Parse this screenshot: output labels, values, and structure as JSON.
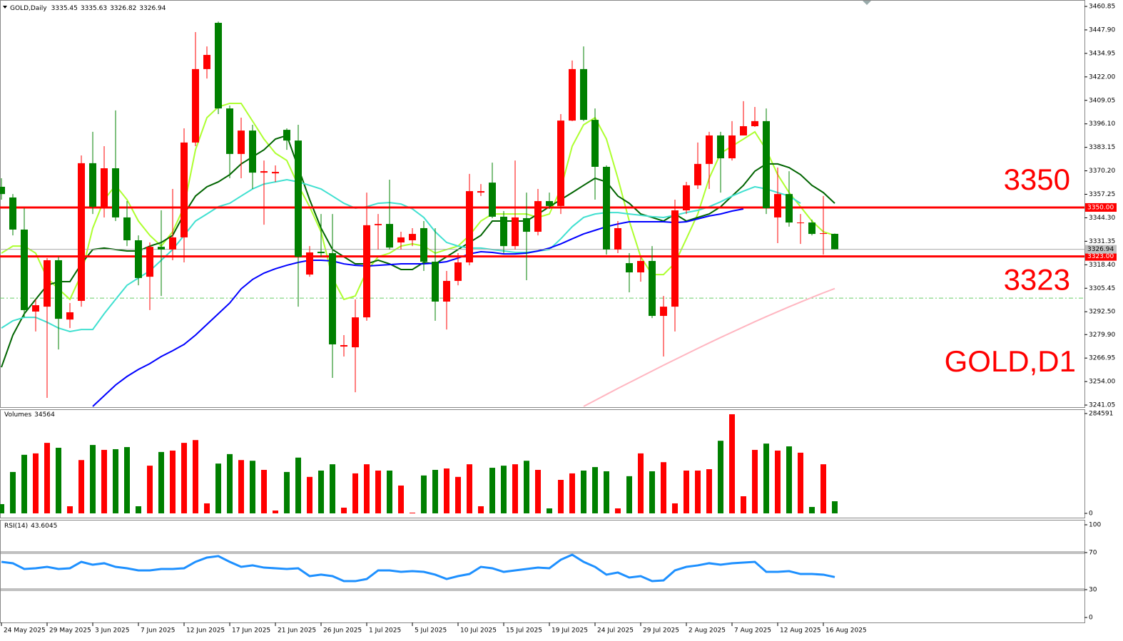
{
  "chart_data": {
    "type": "candlestick",
    "title": "GOLD,Daily",
    "chart_label": "GOLD,D1",
    "up_color": "#ff0000",
    "down_color": "#008000",
    "categories": [
      "24 May 2025",
      null,
      null,
      null,
      "29 May 2025",
      null,
      null,
      null,
      "3 Jun 2025",
      null,
      null,
      null,
      "7 Jun 2025",
      null,
      null,
      null,
      "12 Jun 2025",
      null,
      null,
      null,
      "17 Jun 2025",
      null,
      null,
      null,
      "21 Jun 2025",
      null,
      null,
      null,
      "26 Jun 2025",
      null,
      null,
      null,
      "1 Jul 2025",
      null,
      null,
      null,
      "5 Jul 2025",
      null,
      null,
      null,
      "10 Jul 2025",
      null,
      null,
      null,
      "15 Jul 2025",
      null,
      null,
      null,
      "19 Jul 2025",
      null,
      null,
      null,
      "24 Jul 2025",
      null,
      null,
      null,
      "29 Jul 2025",
      null,
      null,
      null,
      "2 Aug 2025",
      null,
      null,
      null,
      "7 Aug 2025",
      null,
      null,
      null,
      "12 Aug 2025",
      null,
      null,
      null,
      "16 Aug 2025",
      null
    ],
    "candles": [
      [
        3361.4,
        3366.1,
        3354.3,
        3357.4
      ],
      [
        3355.5,
        3357.4,
        3334.6,
        3337.8
      ],
      [
        3337.8,
        3349.6,
        3289.4,
        3293.4
      ],
      [
        3292.6,
        3299.3,
        3281.6,
        3296.1
      ],
      [
        3295.3,
        3322.1,
        3245.0,
        3320.9
      ],
      [
        3320.9,
        3322.8,
        3271.7,
        3288.6
      ],
      [
        3288.2,
        3297.3,
        3283.5,
        3292.2
      ],
      [
        3298.5,
        3378.7,
        3295.3,
        3374.4
      ],
      [
        3374.4,
        3391.7,
        3346.4,
        3350.4
      ],
      [
        3350.4,
        3383.8,
        3344.5,
        3371.6
      ],
      [
        3371.6,
        3403.5,
        3342.5,
        3344.5
      ],
      [
        3344.5,
        3353.5,
        3328.7,
        3331.9
      ],
      [
        3331.9,
        3334.6,
        3307.1,
        3311.1
      ],
      [
        3311.8,
        3330.7,
        3293.4,
        3328.3
      ],
      [
        3328.3,
        3348.4,
        3301.2,
        3326.8
      ],
      [
        3326.8,
        3360.2,
        3320.9,
        3333.5
      ],
      [
        3333.5,
        3393.6,
        3319.7,
        3385.8
      ],
      [
        3385.8,
        3446.7,
        3383.8,
        3426.3
      ],
      [
        3426.3,
        3438.8,
        3421.1,
        3434.1
      ],
      [
        3451.8,
        3452.5,
        3401.5,
        3404.6
      ],
      [
        3404.6,
        3406.2,
        3366.1,
        3379.5
      ],
      [
        3379.5,
        3399.5,
        3366.1,
        3392.4
      ],
      [
        3392.4,
        3395.6,
        3360.2,
        3369.2
      ],
      [
        3369.2,
        3375.9,
        3340.5,
        3370.0
      ],
      [
        3368.8,
        3373.2,
        3364.1,
        3369.6
      ],
      [
        3392.8,
        3393.6,
        3381.8,
        3386.9
      ],
      [
        3386.9,
        3395.6,
        3295.3,
        3322.8
      ],
      [
        3313.0,
        3328.7,
        3311.8,
        3325.2
      ],
      [
        3325.6,
        3346.4,
        3322.8,
        3324.8
      ],
      [
        3324.8,
        3346.4,
        3256.0,
        3274.5
      ],
      [
        3273.3,
        3279.6,
        3267.8,
        3274.1
      ],
      [
        3272.9,
        3299.3,
        3248.1,
        3289.4
      ],
      [
        3289.4,
        3358.2,
        3287.5,
        3340.2
      ],
      [
        3340.2,
        3346.4,
        3326.8,
        3340.9
      ],
      [
        3340.9,
        3365.3,
        3326.8,
        3327.9
      ],
      [
        3330.7,
        3336.6,
        3326.8,
        3333.5
      ],
      [
        3331.9,
        3338.6,
        3328.7,
        3335.4
      ],
      [
        3338.6,
        3342.5,
        3315.0,
        3320.1
      ],
      [
        3320.1,
        3338.6,
        3287.5,
        3298.1
      ],
      [
        3298.1,
        3315.0,
        3282.7,
        3309.5
      ],
      [
        3309.5,
        3324.8,
        3307.1,
        3319.7
      ],
      [
        3319.7,
        3368.5,
        3318.1,
        3359.0
      ],
      [
        3358.2,
        3362.9,
        3356.3,
        3359.0
      ],
      [
        3363.7,
        3374.7,
        3344.1,
        3344.9
      ],
      [
        3344.9,
        3348.0,
        3324.8,
        3328.7
      ],
      [
        3328.7,
        3375.9,
        3326.8,
        3344.5
      ],
      [
        3344.1,
        3358.2,
        3309.9,
        3336.6
      ],
      [
        3336.6,
        3360.2,
        3334.6,
        3353.5
      ],
      [
        3353.5,
        3358.2,
        3349.2,
        3350.8
      ],
      [
        3350.8,
        3401.5,
        3346.4,
        3397.9
      ],
      [
        3397.9,
        3431.0,
        3397.6,
        3426.3
      ],
      [
        3426.3,
        3438.8,
        3397.6,
        3398.3
      ],
      [
        3398.3,
        3404.6,
        3354.3,
        3372.4
      ],
      [
        3372.4,
        3373.2,
        3324.0,
        3326.8
      ],
      [
        3326.8,
        3342.5,
        3324.8,
        3338.6
      ],
      [
        3319.3,
        3324.8,
        3303.2,
        3314.2
      ],
      [
        3314.2,
        3322.8,
        3309.1,
        3320.5
      ],
      [
        3320.5,
        3328.7,
        3289.0,
        3290.2
      ],
      [
        3290.2,
        3301.2,
        3267.8,
        3295.3
      ],
      [
        3295.3,
        3354.3,
        3281.6,
        3348.4
      ],
      [
        3348.4,
        3364.1,
        3346.4,
        3362.2
      ],
      [
        3362.2,
        3385.8,
        3360.2,
        3374.0
      ],
      [
        3374.0,
        3391.7,
        3360.2,
        3389.7
      ],
      [
        3389.7,
        3391.7,
        3358.2,
        3377.1
      ],
      [
        3377.1,
        3397.6,
        3375.9,
        3389.7
      ],
      [
        3389.7,
        3408.6,
        3389.7,
        3394.8
      ],
      [
        3394.8,
        3405.4,
        3394.4,
        3397.6
      ],
      [
        3397.6,
        3404.6,
        3346.4,
        3349.6
      ],
      [
        3344.5,
        3372.0,
        3330.3,
        3357.4
      ],
      [
        3357.4,
        3370.0,
        3339.4,
        3341.7
      ],
      [
        3341.3,
        3346.4,
        3329.9,
        3341.7
      ],
      [
        3341.7,
        3343.3,
        3334.6,
        3335.4
      ],
      [
        3335.4,
        3356.3,
        3324.0,
        3335.8
      ],
      [
        3335.45,
        3335.63,
        3326.82,
        3326.94
      ]
    ],
    "ylim": [
      3239.9,
      3463.6
    ],
    "yticks": [
      3460.85,
      {
        "value": 3447.9,
        "label": "3447.90"
      },
      3434.95,
      {
        "value": 3422,
        "label": "3422.00"
      },
      3409.05,
      {
        "value": 3396.1,
        "label": "3396.10"
      },
      3383.15,
      {
        "value": 3370.2,
        "label": "3370.20"
      },
      3357.25,
      {
        "value": 3344.3,
        "label": "3344.30"
      },
      3331.35,
      {
        "value": 3318.4,
        "label": "3318.40"
      },
      3305.45,
      {
        "value": 3292.5,
        "label": "3292.50"
      },
      {
        "value": 3279.9,
        "label": "3279.90"
      },
      3266.95,
      {
        "value": 3254,
        "label": "3254.00"
      },
      3241.05
    ],
    "moving_averages": [
      {
        "color": "#adff2f",
        "values": [
          3324.8,
          3328.7,
          3328.7,
          3324.8,
          3311.1,
          3305.1,
          3299.3,
          3313.0,
          3338.6,
          3354.3,
          3362.2,
          3354.3,
          3342.5,
          3334.6,
          3328.7,
          3336.6,
          3350.4,
          3381.8,
          3399.5,
          3405.4,
          3407.4,
          3407.4,
          3397.6,
          3387.7,
          3379.9,
          3375.9,
          3362.2,
          3350.4,
          3336.6,
          3311.1,
          3299.3,
          3301.2,
          3315.0,
          3322.8,
          3324.8,
          3328.7,
          3329.9,
          3328.7,
          3324.8,
          3326.8,
          3328.7,
          3334.6,
          3342.5,
          3346.4,
          3346.4,
          3346.4,
          3346.4,
          3344.5,
          3346.4,
          3360.2,
          3383.8,
          3395.6,
          3399.5,
          3387.7,
          3366.1,
          3342.5,
          3322.8,
          3313.0,
          3313.0,
          3319.3,
          3332.7,
          3346.4,
          3366.1,
          3379.9,
          3383.8,
          3387.7,
          3391.7,
          3381.8,
          3368.1,
          3358.2,
          3350.4,
          3342.5,
          3336.6,
          3334.6
        ]
      },
      {
        "color": "#006400",
        "values": [
          3261.9,
          3279.6,
          3291.4,
          3299.3,
          3307.1,
          3309.1,
          3309.1,
          3318.9,
          3326.8,
          3327.6,
          3326.8,
          3326.0,
          3326.0,
          3328.7,
          3330.7,
          3334.6,
          3346.4,
          3356.3,
          3361.4,
          3364.1,
          3368.1,
          3374.0,
          3377.9,
          3381.8,
          3387.7,
          3389.7,
          3372.0,
          3354.3,
          3338.6,
          3326.8,
          3322.8,
          3318.9,
          3318.9,
          3320.9,
          3318.9,
          3315.8,
          3315.8,
          3319.7,
          3318.9,
          3322.8,
          3326.8,
          3330.7,
          3334.6,
          3342.5,
          3342.5,
          3342.5,
          3342.5,
          3346.4,
          3350.4,
          3354.3,
          3358.2,
          3362.2,
          3366.1,
          3364.1,
          3356.3,
          3352.3,
          3346.4,
          3344.5,
          3342.5,
          3346.4,
          3342.5,
          3344.5,
          3346.4,
          3350.4,
          3356.3,
          3362.2,
          3370.0,
          3374.0,
          3374.0,
          3372.0,
          3368.1,
          3362.2,
          3358.2,
          3352.3
        ]
      },
      {
        "color": "#40e0d0",
        "values": [
          3283.5,
          3287.5,
          3289.4,
          3289.4,
          3286.7,
          3283.5,
          3281.6,
          3282.7,
          3282.7,
          3291.4,
          3299.3,
          3307.1,
          3311.1,
          3315.0,
          3320.9,
          3326.8,
          3334.6,
          3342.5,
          3346.4,
          3350.4,
          3352.3,
          3356.3,
          3360.2,
          3362.9,
          3364.1,
          3365.3,
          3364.1,
          3362.2,
          3360.2,
          3356.3,
          3352.3,
          3349.6,
          3350.4,
          3352.3,
          3352.7,
          3351.9,
          3349.2,
          3344.5,
          3336.6,
          3330.7,
          3328.7,
          3327.6,
          3327.6,
          3326.8,
          3326.0,
          3325.2,
          3325.2,
          3326.0,
          3326.8,
          3332.7,
          3339.4,
          3344.5,
          3346.4,
          3347.2,
          3347.2,
          3346.4,
          3345.7,
          3344.9,
          3344.5,
          3345.7,
          3347.2,
          3348.4,
          3350.4,
          3353.1,
          3356.3,
          3359.0,
          3361.4,
          3360.2,
          3358.2,
          3356.3,
          3352.3,
          null,
          null,
          null
        ]
      },
      {
        "color": "#0000ff",
        "values": [
          null,
          null,
          null,
          null,
          null,
          null,
          null,
          null,
          3240.3,
          3246.2,
          3252.1,
          3256.8,
          3260.7,
          3263.9,
          3267.8,
          3271.0,
          3274.5,
          3279.6,
          3285.5,
          3291.4,
          3297.3,
          3305.1,
          3310.3,
          3313.8,
          3316.2,
          3318.1,
          3319.7,
          3320.9,
          3320.9,
          3320.5,
          3318.9,
          3318.1,
          3317.7,
          3318.1,
          3318.5,
          3318.9,
          3318.9,
          3318.9,
          3319.3,
          3320.1,
          3322.1,
          3324.4,
          3325.6,
          3325.2,
          3324.4,
          3324.4,
          3324.8,
          3326.0,
          3327.6,
          3329.9,
          3332.7,
          3335.4,
          3337.4,
          3339.4,
          3340.9,
          3342.1,
          3342.1,
          3342.1,
          3342.1,
          3341.7,
          3342.1,
          3343.7,
          3345.3,
          3346.4,
          3348.0,
          3349.2,
          null,
          null,
          null,
          null,
          null,
          null,
          null,
          null
        ]
      },
      {
        "color": "#ffb6c1",
        "values": [
          null,
          null,
          null,
          null,
          null,
          null,
          null,
          null,
          null,
          null,
          null,
          null,
          null,
          null,
          null,
          null,
          null,
          null,
          null,
          null,
          null,
          null,
          null,
          null,
          null,
          null,
          null,
          null,
          null,
          null,
          null,
          null,
          null,
          null,
          null,
          null,
          null,
          null,
          null,
          null,
          null,
          null,
          null,
          null,
          null,
          null,
          null,
          null,
          null,
          null,
          null,
          3240.3,
          3243.6,
          3246.9,
          3250.2,
          3253.4,
          3256.6,
          3259.8,
          3263.0,
          3266.1,
          3269.2,
          3272.3,
          3275.3,
          3278.3,
          3281.2,
          3284.1,
          3287.0,
          3289.8,
          3292.5,
          3295.2,
          3297.8,
          3300.4,
          3302.9,
          3305.3
        ]
      }
    ],
    "levels": [
      {
        "value": 3350,
        "label": "3350.00",
        "color": "#ff0000"
      },
      {
        "value": 3323,
        "label": "3323.00",
        "color": "#ff0000"
      }
    ],
    "current_price": 3326.94,
    "order_line": 3300.0,
    "volume": {
      "title": "Volumes",
      "ylim": [
        0,
        284591
      ],
      "yticks": [
        0,
        284591
      ],
      "values": [
        26400,
        118000,
        167000,
        171000,
        201000,
        187000,
        20300,
        152000,
        195000,
        181000,
        183000,
        189000,
        20300,
        136000,
        175000,
        179000,
        201000,
        209000,
        28500,
        142000,
        169000,
        152000,
        150000,
        124000,
        8100,
        118000,
        159000,
        104000,
        122000,
        140000,
        16300,
        114000,
        140000,
        122000,
        122000,
        79300,
        2000,
        108000,
        124000,
        128000,
        104000,
        140000,
        20300,
        130000,
        136000,
        140000,
        150000,
        124000,
        14200,
        95500,
        114000,
        122000,
        132000,
        120000,
        14200,
        106000,
        171000,
        120000,
        146000,
        28500,
        122000,
        122000,
        126000,
        207000,
        282600,
        48800,
        181000,
        199000,
        179000,
        191000,
        173000,
        18300,
        140000,
        34564
      ]
    },
    "rsi": {
      "title": "RSI(14)",
      "color": "#1e90ff",
      "ylim": [
        0,
        100
      ],
      "yticks": [
        0,
        30,
        70,
        100
      ],
      "levels": [
        30,
        70
      ],
      "values": [
        60.0,
        58.5,
        52.3,
        53.1,
        54.6,
        52.3,
        53.1,
        60.0,
        56.9,
        58.5,
        54.6,
        53.1,
        50.8,
        50.8,
        52.3,
        52.3,
        53.1,
        60.0,
        64.6,
        66.2,
        60.0,
        54.6,
        56.2,
        53.8,
        53.1,
        52.3,
        53.1,
        44.6,
        46.2,
        44.6,
        39.2,
        39.2,
        41.5,
        50.8,
        50.8,
        49.2,
        50.0,
        49.2,
        46.2,
        41.5,
        44.6,
        46.9,
        54.6,
        53.1,
        49.2,
        50.8,
        52.3,
        53.8,
        53.1,
        62.3,
        67.7,
        60.0,
        54.6,
        46.2,
        48.5,
        43.1,
        44.6,
        39.2,
        40.0,
        50.8,
        54.6,
        56.2,
        58.5,
        56.9,
        58.5,
        59.2,
        60.0,
        49.2,
        49.2,
        50.0,
        46.9,
        46.9,
        46.2,
        43.6045
      ]
    }
  }
}
